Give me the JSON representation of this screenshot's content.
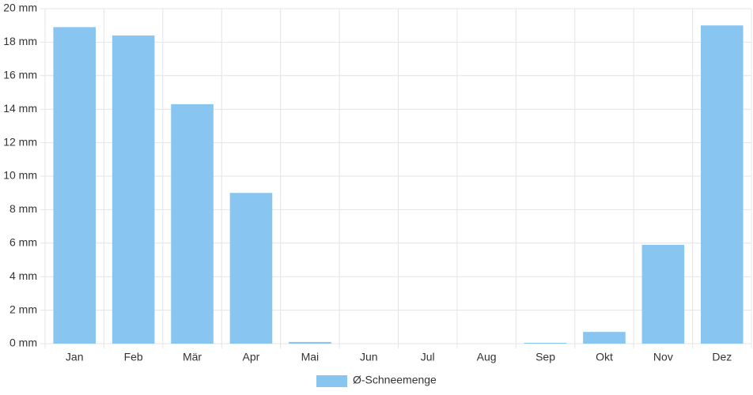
{
  "chart_data": {
    "type": "bar",
    "categories": [
      "Jan",
      "Feb",
      "Mär",
      "Apr",
      "Mai",
      "Jun",
      "Jul",
      "Aug",
      "Sep",
      "Okt",
      "Nov",
      "Dez"
    ],
    "series": [
      {
        "name": "Ø-Schneemenge",
        "color": "#88c5f1",
        "values": [
          18.9,
          18.4,
          14.3,
          9.0,
          0.1,
          0,
          0,
          0,
          0.05,
          0.7,
          5.9,
          19.0
        ]
      }
    ],
    "ylim": [
      0,
      20
    ],
    "yticks": [
      {
        "value": 0,
        "label": "0 mm"
      },
      {
        "value": 2,
        "label": "2 mm"
      },
      {
        "value": 4,
        "label": "4 mm"
      },
      {
        "value": 6,
        "label": "6 mm"
      },
      {
        "value": 8,
        "label": "8 mm"
      },
      {
        "value": 10,
        "label": "10 mm"
      },
      {
        "value": 12,
        "label": "12 mm"
      },
      {
        "value": 14,
        "label": "14 mm"
      },
      {
        "value": 16,
        "label": "16 mm"
      },
      {
        "value": 18,
        "label": "18 mm"
      },
      {
        "value": 20,
        "label": "20 mm"
      }
    ],
    "grid": true,
    "legend": "bottom"
  }
}
